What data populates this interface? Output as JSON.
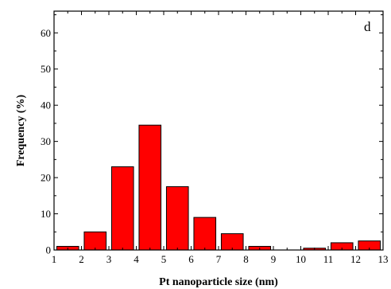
{
  "chart_data": {
    "type": "bar",
    "panel_label": "d",
    "xlabel": "Pt nanoparticle size (nm)",
    "ylabel": "Frequency (%)",
    "xlim": [
      1,
      13
    ],
    "ylim": [
      0,
      66
    ],
    "x_ticks": [
      1,
      2,
      3,
      4,
      5,
      6,
      7,
      8,
      9,
      10,
      11,
      12,
      13
    ],
    "y_ticks": [
      0,
      10,
      20,
      30,
      40,
      50,
      60
    ],
    "bin_width": 0.8,
    "bars": [
      {
        "center": 1.5,
        "value": 1
      },
      {
        "center": 2.5,
        "value": 5
      },
      {
        "center": 3.5,
        "value": 23
      },
      {
        "center": 4.5,
        "value": 34.5
      },
      {
        "center": 5.5,
        "value": 17.5
      },
      {
        "center": 6.5,
        "value": 9
      },
      {
        "center": 7.5,
        "value": 4.5
      },
      {
        "center": 8.5,
        "value": 1
      },
      {
        "center": 10.5,
        "value": 0.5
      },
      {
        "center": 11.5,
        "value": 2
      },
      {
        "center": 12.5,
        "value": 2.5
      }
    ],
    "bar_color": "#ff0000",
    "grid": false
  }
}
